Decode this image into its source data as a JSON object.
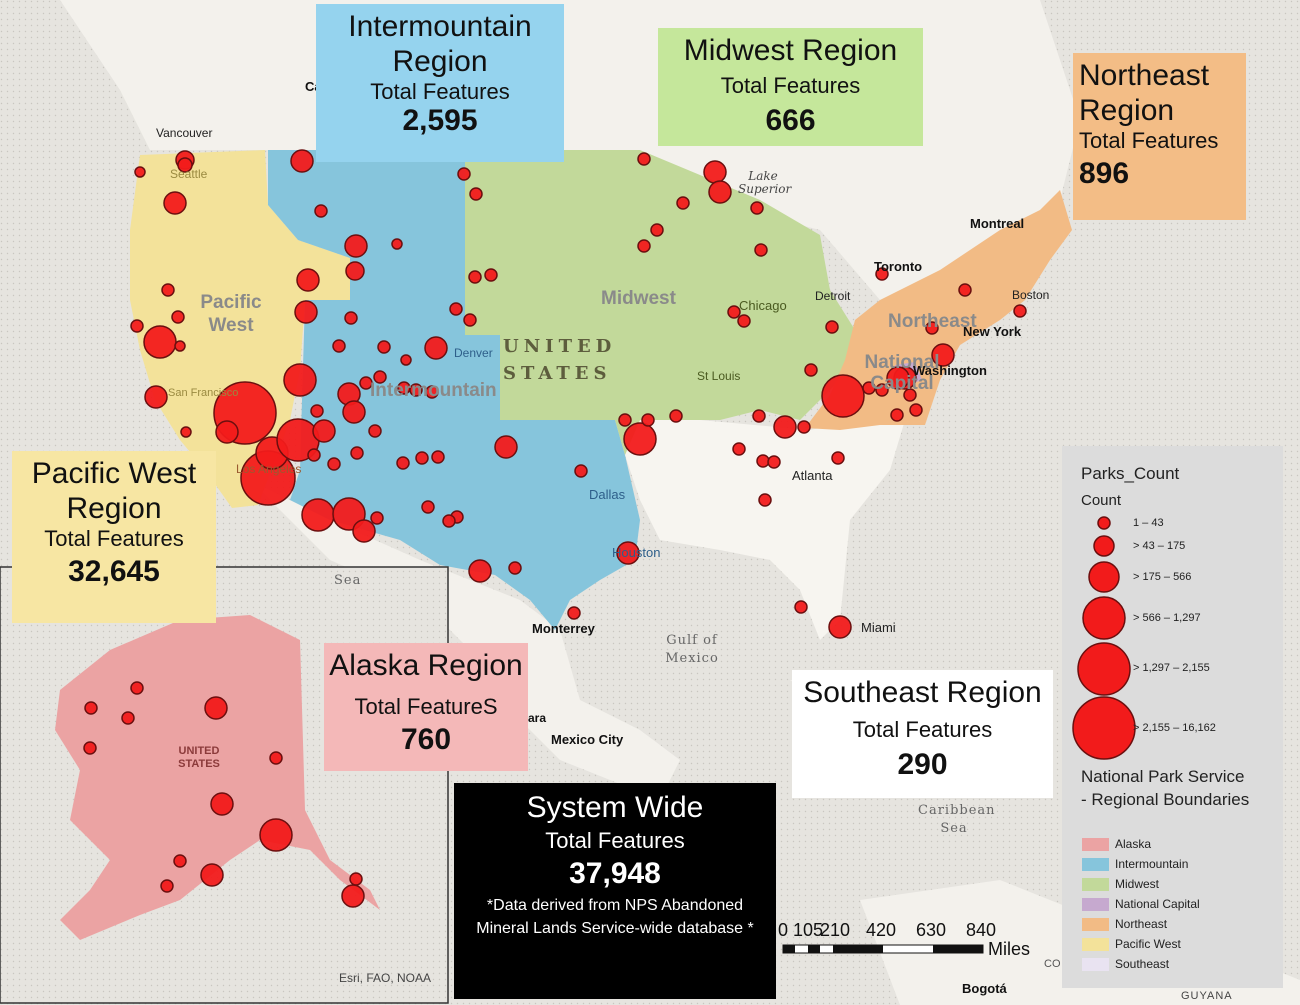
{
  "regions": {
    "intermountain": {
      "title": "Intermountain Region",
      "subtitle": "Total Features",
      "total": "2,595"
    },
    "midwest": {
      "title": "Midwest Region",
      "subtitle": "Total Features",
      "total": "666"
    },
    "northeast": {
      "title": "Northeast Region",
      "subtitle": "Total Features",
      "total": "896"
    },
    "pacific_west": {
      "title": "Pacific West Region",
      "subtitle": "Total Features",
      "total": "32,645"
    },
    "alaska": {
      "title": "Alaska Region",
      "subtitle": "Total FeatureS",
      "total": "760"
    },
    "southeast": {
      "title": "Southeast Region",
      "subtitle": "Total Features",
      "total": "290"
    }
  },
  "system": {
    "title": "System Wide",
    "subtitle": "Total Features",
    "total": "37,948",
    "note": "*Data derived from NPS Abandoned Mineral Lands Service-wide database *"
  },
  "legend": {
    "title": "Parks_Count",
    "count_label": "Count",
    "classes": [
      "1 – 43",
      "> 43 – 175",
      "> 175 – 566",
      "> 566 – 1,297",
      "> 1,297 – 2,155",
      "> 2,155 – 16,162"
    ],
    "boundary_title": "National Park Service - Regional Boundaries",
    "boundaries": [
      {
        "name": "Alaska",
        "color": "#eba3a3"
      },
      {
        "name": "Intermountain",
        "color": "#86c5dc"
      },
      {
        "name": "Midwest",
        "color": "#c2d99a"
      },
      {
        "name": "National Capital",
        "color": "#c6a9cf"
      },
      {
        "name": "Northeast",
        "color": "#f2bb85"
      },
      {
        "name": "Pacific West",
        "color": "#f3e29a"
      },
      {
        "name": "Southeast",
        "color": "#e9e3f1"
      }
    ]
  },
  "map_labels": {
    "region_labels": [
      "Pacific West",
      "Midwest",
      "Northeast",
      "National Capital",
      "Intermountain"
    ],
    "country_label": "UNITED STATES",
    "alaska_label": "UNITED STATES",
    "cities": [
      "Vancouver",
      "Seattle",
      "San Francisco",
      "Los Angeles",
      "Denver",
      "Dallas",
      "Houston",
      "Chicago",
      "Detroit",
      "Toronto",
      "Montreal",
      "Boston",
      "New York",
      "Washington",
      "St Louis",
      "Atlanta",
      "Miami",
      "Monterrey",
      "Mexico City",
      "Bogotá"
    ],
    "water": [
      "Lake Superior",
      "Gulf of Mexico",
      "Caribbean Sea",
      "Sea"
    ],
    "other": [
      "GUYANA",
      "Ca",
      "ara",
      "CO"
    ],
    "attribution": "Esri, FAO, NOAA"
  },
  "scale_bar": {
    "ticks": [
      "0",
      "105",
      "210",
      "420",
      "630",
      "840"
    ],
    "unit": "Miles"
  },
  "colors": {
    "point": "#f21b1b",
    "point_outline": "#6b0f0f",
    "land": "#f5f3ef",
    "water": "#e6e4df"
  }
}
